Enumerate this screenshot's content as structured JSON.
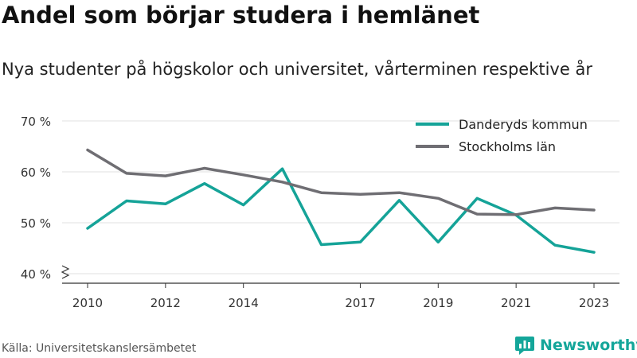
{
  "header": {
    "title": "Andel som börjar studera i hemlänet",
    "subtitle": "Nya studenter på högskolor och universitet, vårterminen respektive år"
  },
  "footer": {
    "source": "Källa: Universitetskanslersämbetet",
    "brand": "Newsworthy",
    "brand_icon": "newsworthy-logo-icon"
  },
  "colors": {
    "danderyd": "#15a398",
    "stockholm": "#6f6e73",
    "grid": "#e2e2e2",
    "axis": "#333333",
    "text": "#333333"
  },
  "chart_data": {
    "type": "line",
    "title": "Andel som börjar studera i hemlänet",
    "subtitle": "Nya studenter på högskolor och universitet, vårterminen respektive år",
    "xlabel": "",
    "ylabel": "",
    "x": [
      2010,
      2011,
      2012,
      2013,
      2014,
      2015,
      2016,
      2017,
      2018,
      2019,
      2020,
      2021,
      2022,
      2023
    ],
    "x_ticks": [
      "2010",
      "2012",
      "2014",
      "2017",
      "2019",
      "2021",
      "2023"
    ],
    "y_ticks": [
      "40 %",
      "50 %",
      "60 %",
      "70 %"
    ],
    "ylim": [
      40,
      70
    ],
    "y_axis_break": true,
    "grid": "horizontal",
    "legend_position": "top-right",
    "series": [
      {
        "name": "Danderyds kommun",
        "color": "#15a398",
        "values": [
          48.9,
          54.3,
          53.7,
          57.7,
          53.5,
          60.6,
          45.7,
          46.2,
          54.4,
          46.2,
          54.8,
          51.5,
          45.6,
          44.2
        ]
      },
      {
        "name": "Stockholms län",
        "color": "#6f6e73",
        "values": [
          64.3,
          59.7,
          59.2,
          60.7,
          59.4,
          58.0,
          55.9,
          55.6,
          55.9,
          54.8,
          51.7,
          51.6,
          52.9,
          52.5
        ]
      }
    ]
  }
}
